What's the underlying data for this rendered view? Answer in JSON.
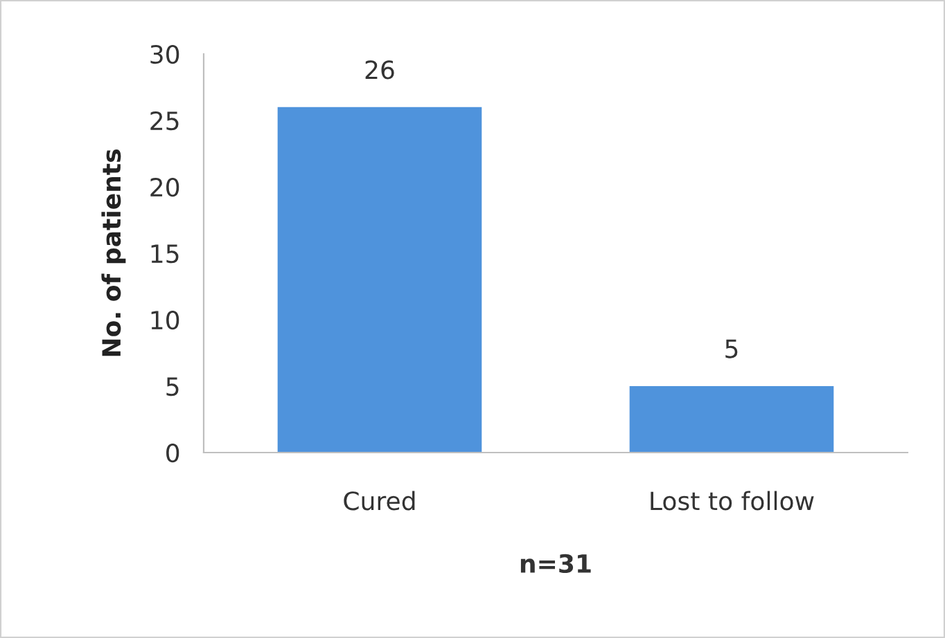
{
  "chart_data": {
    "type": "bar",
    "categories": [
      "Cured",
      "Lost to follow"
    ],
    "values": [
      26,
      5
    ],
    "color": "#4f93dc",
    "ylim": [
      0,
      30
    ],
    "yticks": [
      0,
      5,
      10,
      15,
      20,
      25,
      30
    ],
    "xlabel": "n=31",
    "ylabel": "No. of patients",
    "data_labels": true,
    "grid": false,
    "legend": false
  }
}
